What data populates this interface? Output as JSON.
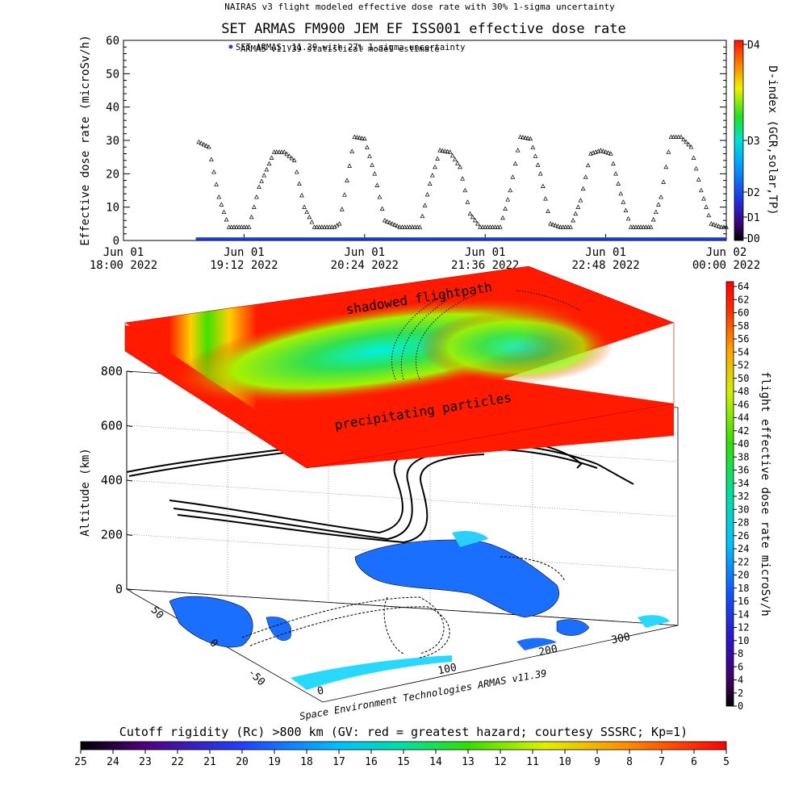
{
  "header": {
    "top_title": "NAIRAS v3 flight modeled effective dose rate with 30% 1-sigma uncertainty",
    "main_title": "SET ARMAS FM900 JEM EF ISS001 effective dose rate",
    "legend_1": "ARMAS v11.39 statistical model estimate",
    "legend_2": "SET ARMAS v11.39 with 27% 1-sigma uncertainty"
  },
  "chart_data": [
    {
      "type": "scatter",
      "title": "SET ARMAS FM900 JEM EF ISS001 effective dose rate",
      "ylabel": "Effective dose rate (microSv/h)",
      "ylim": [
        0,
        60
      ],
      "yticks": [
        0,
        10,
        20,
        30,
        40,
        50,
        60
      ],
      "x_tick_labels": [
        [
          "Jun 01",
          "18:00 2022"
        ],
        [
          "Jun 01",
          "19:12 2022"
        ],
        [
          "Jun 01",
          "20:24 2022"
        ],
        [
          "Jun 01",
          "21:36 2022"
        ],
        [
          "Jun 01",
          "22:48 2022"
        ],
        [
          "Jun 02",
          "00:00 2022"
        ]
      ],
      "xlim_hours": [
        18.0,
        24.0
      ],
      "series": [
        {
          "name": "ARMAS v11.39 statistical model estimate",
          "marker": "triangle",
          "color": "#000000",
          "x_hours": [
            18.75,
            18.85,
            18.95,
            19.05,
            19.12,
            19.25,
            19.35,
            19.5,
            19.6,
            19.7,
            19.8,
            19.9,
            20.0,
            20.1,
            20.15,
            20.3,
            20.4,
            20.5,
            20.6,
            20.75,
            20.85,
            20.95,
            21.05,
            21.15,
            21.25,
            21.35,
            21.45,
            21.55,
            21.65,
            21.75,
            21.85,
            21.95,
            22.05,
            22.15,
            22.25,
            22.35,
            22.45,
            22.55,
            22.65,
            22.75,
            22.85,
            22.95,
            23.05,
            23.15,
            23.25,
            23.35,
            23.45,
            23.55,
            23.65,
            23.75,
            23.85,
            23.95,
            24.0
          ],
          "y": [
            29.5,
            28.0,
            13.0,
            4.0,
            4.0,
            4.0,
            16.0,
            26.5,
            26.5,
            24.0,
            10.0,
            4.0,
            4.0,
            4.0,
            5.0,
            31.0,
            30.5,
            20.0,
            6.0,
            4.0,
            4.0,
            4.0,
            17.0,
            27.0,
            26.5,
            22.0,
            8.0,
            4.0,
            4.0,
            4.0,
            15.0,
            31.0,
            30.5,
            20.0,
            5.0,
            4.0,
            4.0,
            12.0,
            26.0,
            27.0,
            26.0,
            14.0,
            4.0,
            4.0,
            4.0,
            13.0,
            31.0,
            31.0,
            28.0,
            15.0,
            5.0,
            4.0,
            4.0
          ]
        },
        {
          "name": "SET ARMAS v11.39 with 27% 1-sigma uncertainty",
          "marker": "dot",
          "color": "#1f3fd8",
          "x_hours": [
            18.72,
            24.0
          ],
          "y": [
            0.5,
            0.5
          ]
        }
      ],
      "d_index_colorbar": {
        "label": "D-index (GCR,solar,TP)",
        "ticks": [
          "D4",
          "D3",
          "D2",
          "D1",
          "D0"
        ]
      }
    },
    {
      "type": "heatmap",
      "zlabel": "Altitude (km)",
      "zticks": [
        0,
        200,
        400,
        600,
        800
      ],
      "xticks": [
        0,
        100,
        200,
        300
      ],
      "yticks": [
        -50,
        0,
        50
      ],
      "annotations": [
        "shadowed flightpath",
        "precipitating particles"
      ],
      "credit": "Space Environment Technologies ARMAS v11.39",
      "right_colorbar": {
        "label": "flight effective dose rate microSv/h",
        "ticks": [
          0,
          2,
          4,
          6,
          8,
          10,
          12,
          14,
          16,
          18,
          20,
          22,
          24,
          26,
          28,
          30,
          32,
          34,
          36,
          38,
          40,
          42,
          44,
          46,
          48,
          50,
          52,
          54,
          56,
          58,
          60,
          62,
          64
        ]
      },
      "bottom_colorbar": {
        "title": "Cutoff rigidity (Rc) >800 km (GV: red = greatest hazard; courtesy SSSRC; Kp=1)",
        "ticks": [
          25,
          24,
          23,
          22,
          21,
          20,
          19,
          18,
          17,
          16,
          15,
          14,
          13,
          12,
          11,
          10,
          9,
          8,
          7,
          6,
          5
        ]
      }
    }
  ]
}
